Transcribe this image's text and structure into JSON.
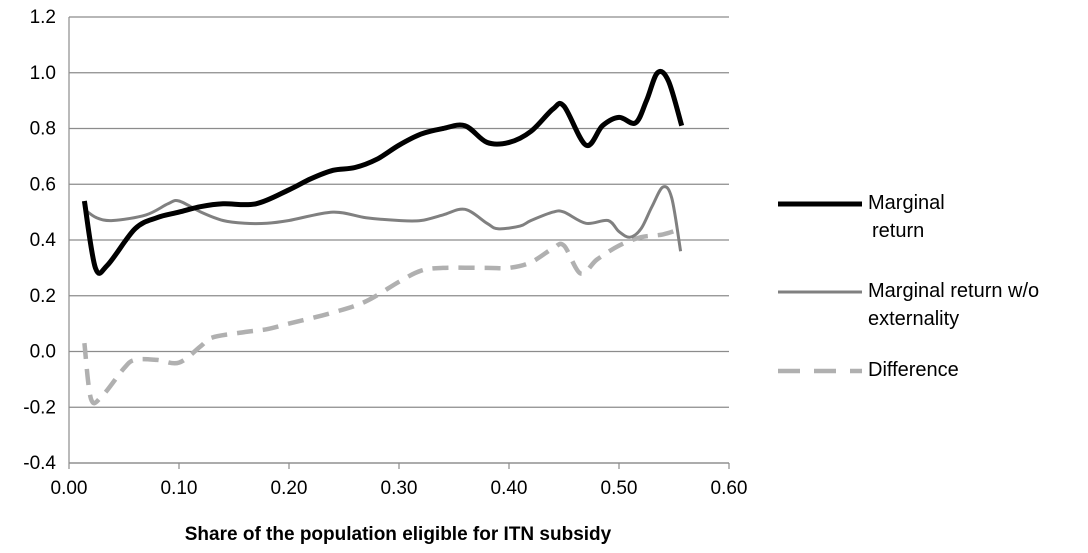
{
  "chart_data": {
    "type": "line",
    "title": "",
    "xlabel": "Share of the population eligible for ITN subsidy",
    "ylabel": "",
    "xlim": [
      0.0,
      0.6
    ],
    "ylim": [
      -0.4,
      1.2
    ],
    "x_ticks": [
      "0.00",
      "0.10",
      "0.20",
      "0.30",
      "0.40",
      "0.50",
      "0.60"
    ],
    "y_ticks": [
      "-0.4",
      "-0.2",
      "0.0",
      "0.2",
      "0.4",
      "0.6",
      "0.8",
      "1.0",
      "1.2"
    ],
    "grid": "horizontal",
    "legend_position": "right",
    "series": [
      {
        "name": "Marginal return",
        "legend_lines": [
          "Marginal",
          "return"
        ],
        "color": "#000000",
        "style": "solid-thick",
        "points": [
          [
            0.014,
            0.54
          ],
          [
            0.024,
            0.3
          ],
          [
            0.035,
            0.31
          ],
          [
            0.06,
            0.44
          ],
          [
            0.08,
            0.48
          ],
          [
            0.1,
            0.5
          ],
          [
            0.12,
            0.52
          ],
          [
            0.14,
            0.53
          ],
          [
            0.17,
            0.53
          ],
          [
            0.2,
            0.58
          ],
          [
            0.22,
            0.62
          ],
          [
            0.24,
            0.65
          ],
          [
            0.26,
            0.66
          ],
          [
            0.28,
            0.69
          ],
          [
            0.3,
            0.74
          ],
          [
            0.32,
            0.78
          ],
          [
            0.34,
            0.8
          ],
          [
            0.36,
            0.81
          ],
          [
            0.38,
            0.75
          ],
          [
            0.4,
            0.75
          ],
          [
            0.42,
            0.79
          ],
          [
            0.44,
            0.87
          ],
          [
            0.45,
            0.88
          ],
          [
            0.47,
            0.74
          ],
          [
            0.485,
            0.81
          ],
          [
            0.5,
            0.84
          ],
          [
            0.515,
            0.82
          ],
          [
            0.525,
            0.9
          ],
          [
            0.535,
            1.0
          ],
          [
            0.545,
            0.97
          ],
          [
            0.557,
            0.81
          ]
        ]
      },
      {
        "name": "Marginal return w/o externality",
        "legend_lines": [
          "Marginal return w/o",
          "externality"
        ],
        "color": "#808080",
        "style": "solid",
        "points": [
          [
            0.014,
            0.51
          ],
          [
            0.025,
            0.48
          ],
          [
            0.04,
            0.47
          ],
          [
            0.07,
            0.49
          ],
          [
            0.09,
            0.53
          ],
          [
            0.1,
            0.54
          ],
          [
            0.12,
            0.5
          ],
          [
            0.14,
            0.47
          ],
          [
            0.16,
            0.46
          ],
          [
            0.18,
            0.46
          ],
          [
            0.2,
            0.47
          ],
          [
            0.24,
            0.5
          ],
          [
            0.27,
            0.48
          ],
          [
            0.3,
            0.47
          ],
          [
            0.32,
            0.47
          ],
          [
            0.34,
            0.49
          ],
          [
            0.36,
            0.51
          ],
          [
            0.38,
            0.46
          ],
          [
            0.39,
            0.44
          ],
          [
            0.41,
            0.45
          ],
          [
            0.42,
            0.47
          ],
          [
            0.44,
            0.5
          ],
          [
            0.45,
            0.5
          ],
          [
            0.47,
            0.46
          ],
          [
            0.49,
            0.47
          ],
          [
            0.5,
            0.43
          ],
          [
            0.51,
            0.41
          ],
          [
            0.52,
            0.44
          ],
          [
            0.53,
            0.52
          ],
          [
            0.54,
            0.59
          ],
          [
            0.548,
            0.55
          ],
          [
            0.556,
            0.36
          ]
        ]
      },
      {
        "name": "Difference",
        "legend_lines": [
          "Difference"
        ],
        "color": "#b0b0b0",
        "style": "dashed",
        "points": [
          [
            0.014,
            0.03
          ],
          [
            0.02,
            -0.17
          ],
          [
            0.03,
            -0.16
          ],
          [
            0.05,
            -0.06
          ],
          [
            0.06,
            -0.03
          ],
          [
            0.08,
            -0.03
          ],
          [
            0.1,
            -0.04
          ],
          [
            0.12,
            0.02
          ],
          [
            0.13,
            0.05
          ],
          [
            0.16,
            0.07
          ],
          [
            0.18,
            0.08
          ],
          [
            0.2,
            0.1
          ],
          [
            0.24,
            0.14
          ],
          [
            0.27,
            0.18
          ],
          [
            0.3,
            0.25
          ],
          [
            0.32,
            0.29
          ],
          [
            0.34,
            0.3
          ],
          [
            0.38,
            0.3
          ],
          [
            0.4,
            0.3
          ],
          [
            0.42,
            0.32
          ],
          [
            0.44,
            0.37
          ],
          [
            0.45,
            0.38
          ],
          [
            0.465,
            0.28
          ],
          [
            0.48,
            0.33
          ],
          [
            0.5,
            0.38
          ],
          [
            0.52,
            0.41
          ],
          [
            0.54,
            0.42
          ],
          [
            0.556,
            0.44
          ]
        ]
      }
    ]
  }
}
